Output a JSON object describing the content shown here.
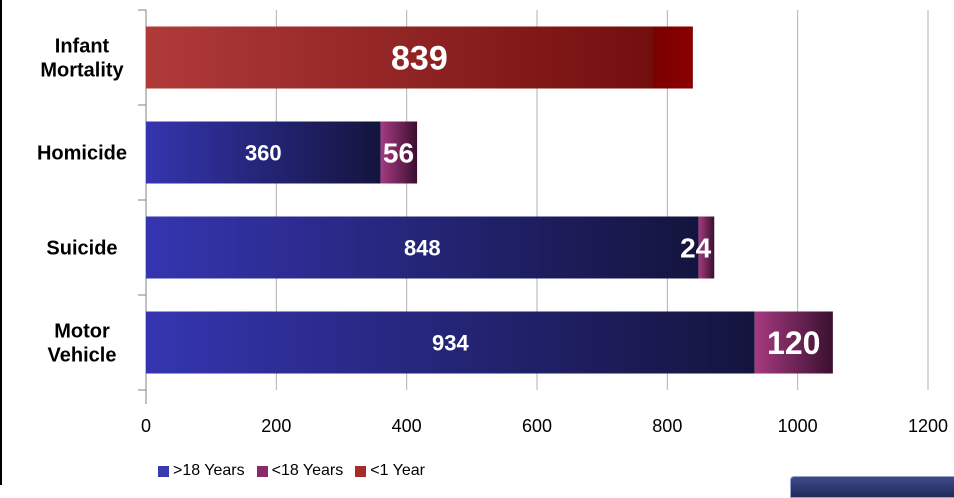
{
  "chart_data": {
    "type": "bar",
    "orientation": "horizontal",
    "stacked": true,
    "categories": [
      "Infant\nMortality",
      "Homicide",
      "Suicide",
      "Motor\nVehicle"
    ],
    "series": [
      {
        "name": ">18 Years",
        "values": [
          0,
          360,
          848,
          934
        ],
        "color": "#3a3ab0"
      },
      {
        "name": "<18 Years",
        "values": [
          0,
          56,
          24,
          120
        ],
        "color": "#8a2a6a"
      },
      {
        "name": "<1 Year",
        "values": [
          839,
          0,
          0,
          0
        ],
        "color": "#a52a2a"
      }
    ],
    "xlim": [
      0,
      1200
    ],
    "xticks": [
      0,
      200,
      400,
      600,
      800,
      1000,
      1200
    ],
    "grid": "vertical",
    "legend_position": "bottom-left"
  }
}
